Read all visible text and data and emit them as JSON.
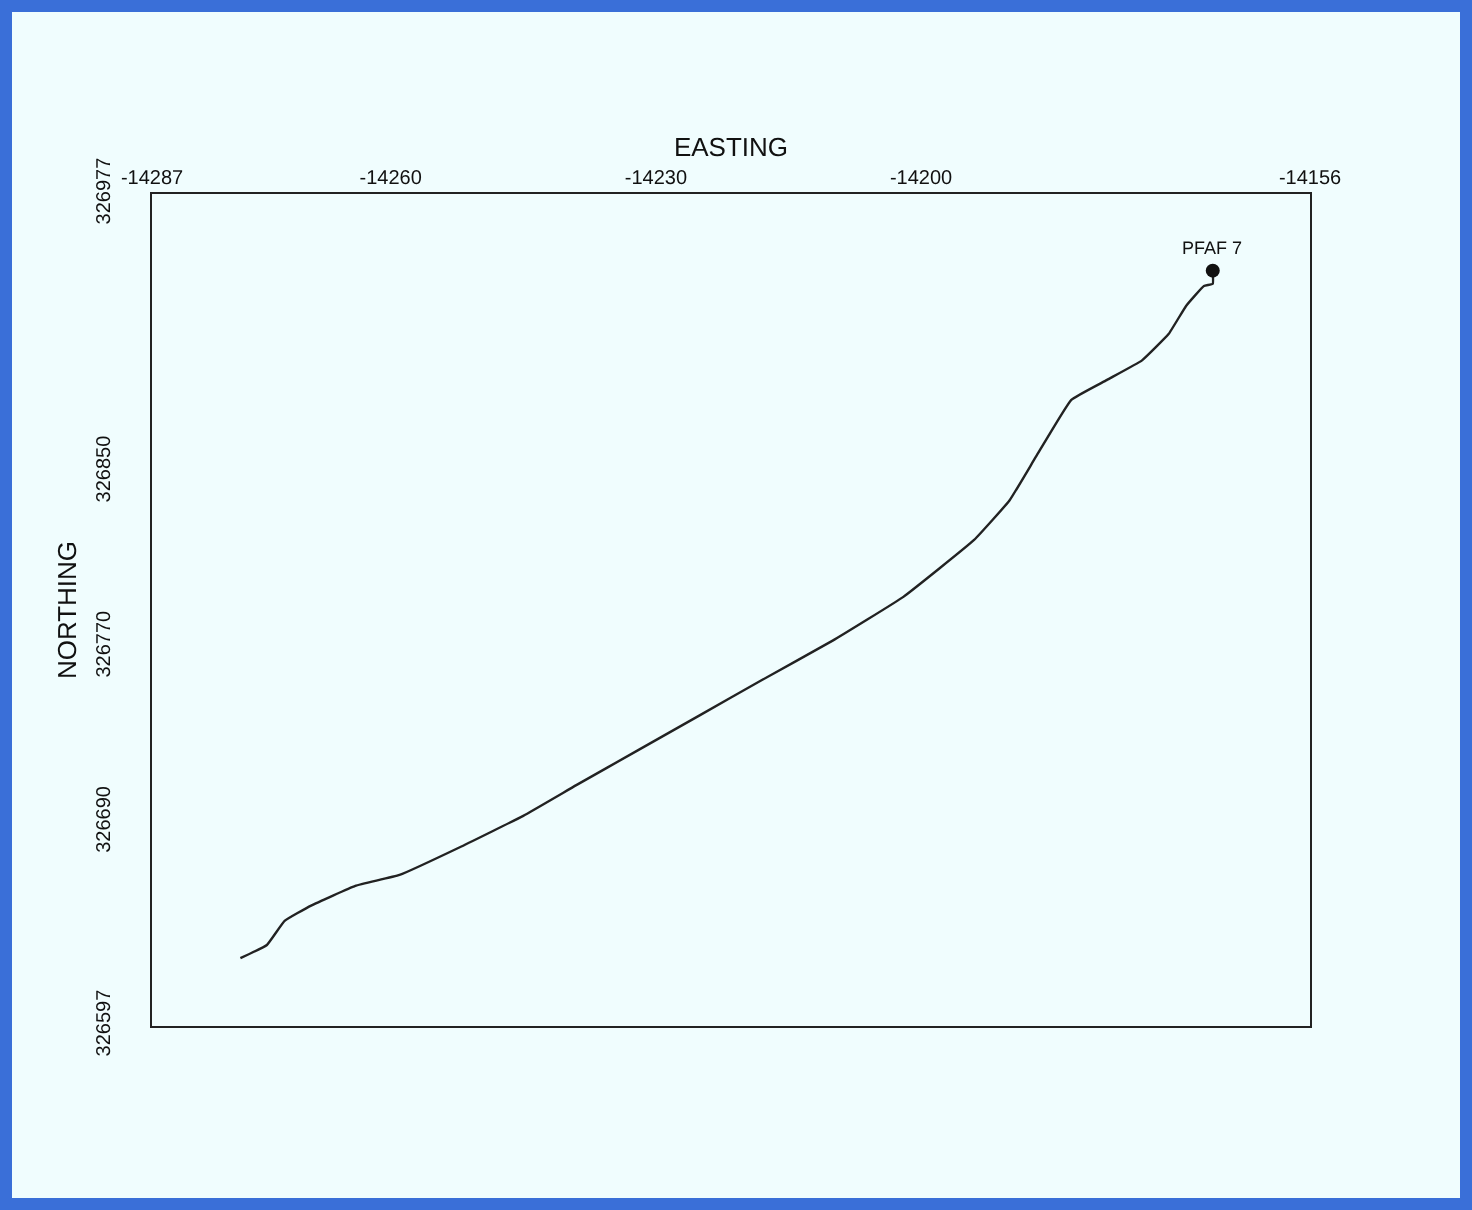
{
  "chart_data": {
    "type": "line",
    "xlabel": "EASTING",
    "ylabel": "NORTHING",
    "xlim": [
      -14287,
      -14156
    ],
    "xticks": [
      -14287,
      -14260,
      -14230,
      -14200,
      -14156
    ],
    "ylim": [
      326597,
      326977
    ],
    "yticks": [
      326597,
      326690,
      326770,
      326850,
      326977
    ],
    "grid": false,
    "marker": "none",
    "line_style": "solid",
    "series": [
      {
        "color": "#222222",
        "x": [
          -14277,
          -14274,
          -14272,
          -14269,
          -14264,
          -14259,
          -14252,
          -14245,
          -14239,
          -14232,
          -14225,
          -14218,
          -14210,
          -14202,
          -14194,
          -14190,
          -14187,
          -14183,
          -14179,
          -14175,
          -14172,
          -14170,
          -14168,
          -14167,
          -14167
        ],
        "values": [
          326628,
          326634,
          326645,
          326652,
          326661,
          326666,
          326679,
          326693,
          326707,
          326723,
          326739,
          326755,
          326773,
          326793,
          326819,
          326837,
          326857,
          326883,
          326892,
          326901,
          326913,
          326926,
          326935,
          326936,
          326942
        ]
      },
      {
        "type": "scatter",
        "marker": "circle",
        "color": "#111111",
        "x": [
          -14167
        ],
        "values": [
          326942
        ]
      }
    ],
    "annotations": [
      {
        "text": "PFAF 7",
        "x": -14167,
        "y": 326942
      }
    ]
  }
}
